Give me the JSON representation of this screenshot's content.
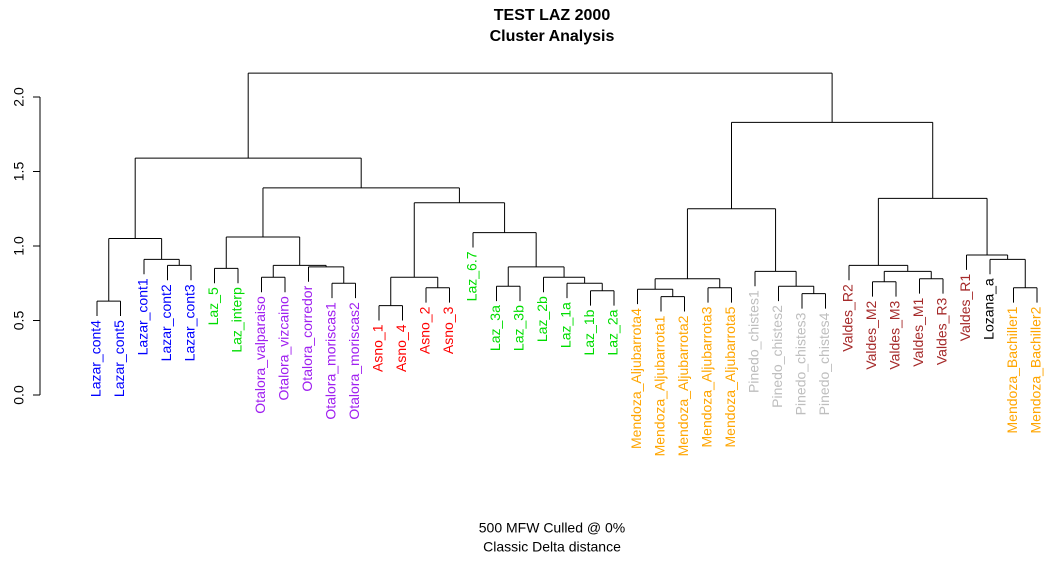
{
  "chart_data": {
    "type": "dendrogram",
    "title": "TEST LAZ 2000",
    "subtitle": "Cluster Analysis",
    "caption": [
      "500 MFW  Culled @ 0%",
      "Classic Delta distance"
    ],
    "ylim": [
      0,
      2.2
    ],
    "yticks": [
      {
        "value": 0,
        "label": "0.0"
      },
      0.5,
      {
        "value": 1,
        "label": "1.0"
      },
      1.5,
      {
        "value": 2,
        "label": "2.0"
      }
    ],
    "tree": {
      "height": 2.16,
      "children": [
        {
          "height": 1.59,
          "children": [
            {
              "height": 1.05,
              "children": [
                {
                  "height": 0.63,
                  "children": [
                    {
                      "label": "Lazar_cont4",
                      "color": "#0000ff"
                    },
                    {
                      "label": "Lazar_cont5",
                      "color": "#0000ff"
                    }
                  ]
                },
                {
                  "height": 0.91,
                  "children": [
                    {
                      "label": "Lazar_cont1",
                      "color": "#0000ff"
                    },
                    {
                      "height": 0.87,
                      "children": [
                        {
                          "label": "Lazar_cont2",
                          "color": "#0000ff"
                        },
                        {
                          "label": "Lazar_cont3",
                          "color": "#0000ff"
                        }
                      ]
                    }
                  ]
                }
              ]
            },
            {
              "height": 1.39,
              "children": [
                {
                  "height": 1.06,
                  "children": [
                    {
                      "height": 0.85,
                      "children": [
                        {
                          "label": "Laz_5",
                          "color": "#00dd00"
                        },
                        {
                          "label": "Laz_interp",
                          "color": "#00dd00"
                        }
                      ]
                    },
                    {
                      "height": 0.87,
                      "children": [
                        {
                          "height": 0.79,
                          "children": [
                            {
                              "label": "Otalora_valparaiso",
                              "color": "#a020f0"
                            },
                            {
                              "label": "Otalora_vizcaino",
                              "color": "#a020f0"
                            }
                          ]
                        },
                        {
                          "height": 0.86,
                          "children": [
                            {
                              "label": "Otalora_corredor",
                              "color": "#a020f0"
                            },
                            {
                              "height": 0.75,
                              "children": [
                                {
                                  "label": "Otalora_moriscas1",
                                  "color": "#a020f0"
                                },
                                {
                                  "label": "Otalora_moriscas2",
                                  "color": "#a020f0"
                                }
                              ]
                            }
                          ]
                        }
                      ]
                    }
                  ]
                },
                {
                  "height": 1.29,
                  "children": [
                    {
                      "height": 0.79,
                      "children": [
                        {
                          "height": 0.6,
                          "children": [
                            {
                              "label": "Asno_1",
                              "color": "#ff0000"
                            },
                            {
                              "label": "Asno_4",
                              "color": "#ff0000"
                            }
                          ]
                        },
                        {
                          "height": 0.72,
                          "children": [
                            {
                              "label": "Asno_2",
                              "color": "#ff0000"
                            },
                            {
                              "label": "Asno_3",
                              "color": "#ff0000"
                            }
                          ]
                        }
                      ]
                    },
                    {
                      "height": 1.09,
                      "children": [
                        {
                          "label": "Laz_6.7",
                          "color": "#00dd00"
                        },
                        {
                          "height": 0.86,
                          "children": [
                            {
                              "height": 0.73,
                              "children": [
                                {
                                  "label": "Laz_3a",
                                  "color": "#00dd00"
                                },
                                {
                                  "label": "Laz_3b",
                                  "color": "#00dd00"
                                }
                              ]
                            },
                            {
                              "height": 0.79,
                              "children": [
                                {
                                  "label": "Laz_2b",
                                  "color": "#00dd00"
                                },
                                {
                                  "height": 0.75,
                                  "children": [
                                    {
                                      "label": "Laz_1a",
                                      "color": "#00dd00"
                                    },
                                    {
                                      "height": 0.7,
                                      "children": [
                                        {
                                          "label": "Laz_1b",
                                          "color": "#00dd00"
                                        },
                                        {
                                          "label": "Laz_2a",
                                          "color": "#00dd00"
                                        }
                                      ]
                                    }
                                  ]
                                }
                              ]
                            }
                          ]
                        }
                      ]
                    }
                  ]
                }
              ]
            }
          ]
        },
        {
          "height": 1.83,
          "children": [
            {
              "height": 1.25,
              "children": [
                {
                  "height": 0.78,
                  "children": [
                    {
                      "height": 0.71,
                      "children": [
                        {
                          "label": "Mendoza_Aljubarrota4",
                          "color": "#ffa500"
                        },
                        {
                          "height": 0.66,
                          "children": [
                            {
                              "label": "Mendoza_Aljubarrota1",
                              "color": "#ffa500"
                            },
                            {
                              "label": "Mendoza_Aljubarrota2",
                              "color": "#ffa500"
                            }
                          ]
                        }
                      ]
                    },
                    {
                      "height": 0.72,
                      "children": [
                        {
                          "label": "Mendoza_Aljubarrota3",
                          "color": "#ffa500"
                        },
                        {
                          "label": "Mendoza_Aljubarrota5",
                          "color": "#ffa500"
                        }
                      ]
                    }
                  ]
                },
                {
                  "height": 0.83,
                  "children": [
                    {
                      "label": "Pinedo_chistes1",
                      "color": "#bebebe"
                    },
                    {
                      "height": 0.73,
                      "children": [
                        {
                          "label": "Pinedo_chistes2",
                          "color": "#bebebe"
                        },
                        {
                          "height": 0.68,
                          "children": [
                            {
                              "label": "Pinedo_chistes3",
                              "color": "#bebebe"
                            },
                            {
                              "label": "Pinedo_chistes4",
                              "color": "#bebebe"
                            }
                          ]
                        }
                      ]
                    }
                  ]
                }
              ]
            },
            {
              "height": 1.32,
              "children": [
                {
                  "height": 0.87,
                  "children": [
                    {
                      "label": "Valdes_R2",
                      "color": "#a52a2a"
                    },
                    {
                      "height": 0.83,
                      "children": [
                        {
                          "height": 0.76,
                          "children": [
                            {
                              "label": "Valdes_M2",
                              "color": "#a52a2a"
                            },
                            {
                              "label": "Valdes_M3",
                              "color": "#a52a2a"
                            }
                          ]
                        },
                        {
                          "height": 0.78,
                          "children": [
                            {
                              "label": "Valdes_M1",
                              "color": "#a52a2a"
                            },
                            {
                              "label": "Valdes_R3",
                              "color": "#a52a2a"
                            }
                          ]
                        }
                      ]
                    }
                  ]
                },
                {
                  "height": 0.94,
                  "children": [
                    {
                      "label": "Valdes_R1",
                      "color": "#a52a2a"
                    },
                    {
                      "height": 0.91,
                      "children": [
                        {
                          "label": "Lozana_a",
                          "color": "#000000"
                        },
                        {
                          "height": 0.72,
                          "children": [
                            {
                              "label": "Mendoza_Bachiller1",
                              "color": "#ffa500"
                            },
                            {
                              "label": "Mendoza_Bachiller2",
                              "color": "#ffa500"
                            }
                          ]
                        }
                      ]
                    }
                  ]
                }
              ]
            }
          ]
        }
      ]
    }
  }
}
